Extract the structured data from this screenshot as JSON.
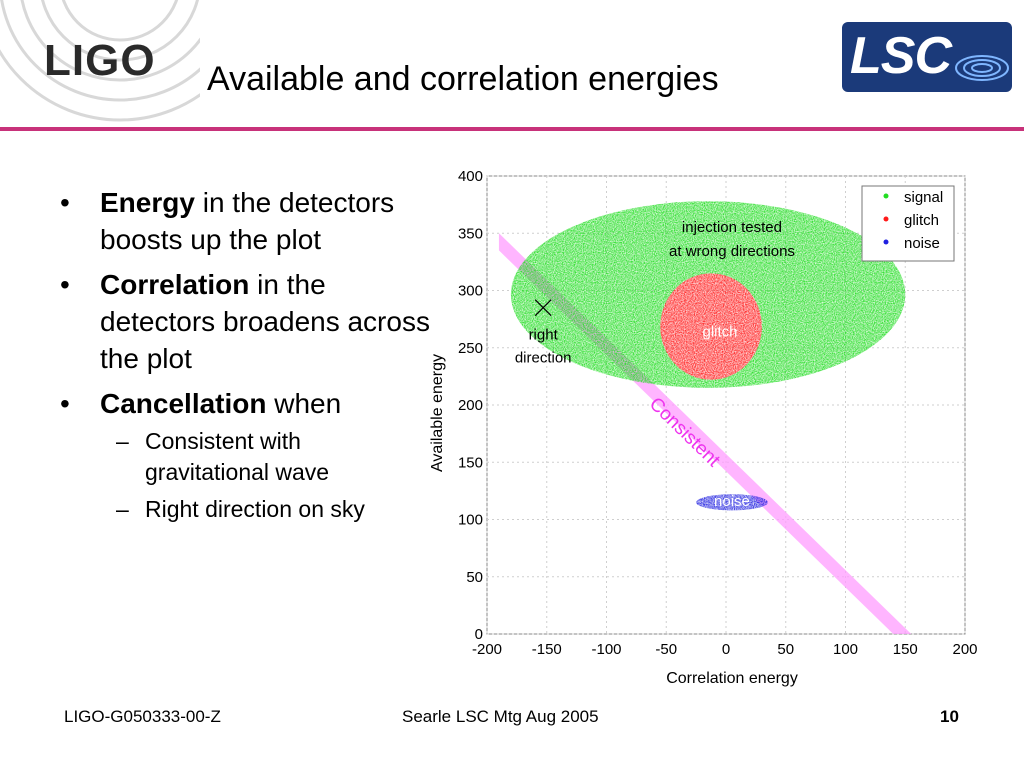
{
  "header": {
    "logo_left": "LIGO",
    "title": "Available and correlation energies",
    "logo_right": "LSC",
    "accent_color": "#c8327a"
  },
  "bullets": [
    {
      "bold": "Energy",
      "rest": " in the detectors boosts up the plot"
    },
    {
      "bold": "Correlation",
      "rest": " in the detectors broadens across the plot"
    },
    {
      "bold": "Cancellation",
      "rest": " when",
      "sub": [
        "Consistent with gravitational wave",
        "Right direction on sky"
      ]
    }
  ],
  "chart_data": {
    "type": "scatter",
    "xlabel": "Correlation energy",
    "ylabel": "Available energy",
    "xlim": [
      -200,
      200
    ],
    "ylim": [
      0,
      400
    ],
    "xticks": [
      -200,
      -150,
      -100,
      -50,
      0,
      50,
      100,
      150,
      200
    ],
    "yticks": [
      0,
      50,
      100,
      150,
      200,
      250,
      300,
      350,
      400
    ],
    "grid": true,
    "legend_position": "top-right",
    "series": [
      {
        "name": "signal",
        "color": "#22dd22",
        "region": {
          "x": [
            -180,
            150
          ],
          "y": [
            215,
            378
          ]
        }
      },
      {
        "name": "glitch",
        "color": "#ff1a1a",
        "region": {
          "x": [
            -55,
            30
          ],
          "y": [
            222,
            315
          ]
        }
      },
      {
        "name": "noise",
        "color": "#2020e0",
        "region": {
          "x": [
            -25,
            35
          ],
          "y": [
            108,
            122
          ]
        }
      }
    ],
    "band": {
      "label": "Consistent",
      "color": "#ff80ff",
      "lower_line": [
        [
          -190,
          335
        ],
        [
          140,
          0
        ]
      ],
      "upper_line": [
        [
          -190,
          350
        ],
        [
          155,
          0
        ]
      ]
    },
    "annotations": [
      {
        "text": "injection tested",
        "x": 5,
        "y": 351
      },
      {
        "text": "at wrong directions",
        "x": 5,
        "y": 330
      },
      {
        "text": "glitch",
        "x": -5,
        "y": 260
      },
      {
        "text": "right",
        "x": -153,
        "y": 257
      },
      {
        "text": "direction",
        "x": -153,
        "y": 237
      },
      {
        "text": "noise",
        "x": 5,
        "y": 112
      }
    ],
    "marker": {
      "label": "right direction",
      "x": -153,
      "y": 285
    }
  },
  "footer": {
    "left": "LIGO-G050333-00-Z",
    "center": "Searle LSC Mtg Aug 2005",
    "page": "10"
  }
}
